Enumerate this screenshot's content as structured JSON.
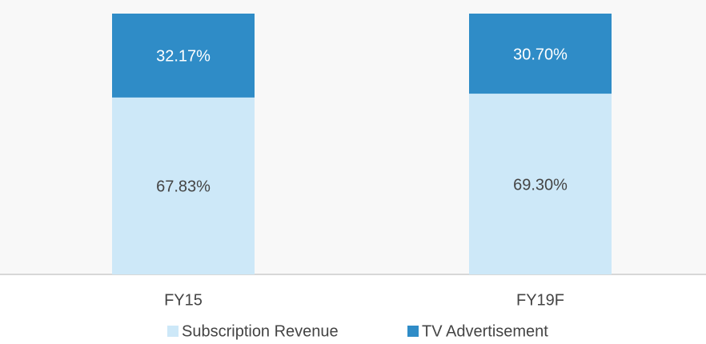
{
  "chart_data": {
    "type": "stacked_bar",
    "categories": [
      "FY15",
      "FY19F"
    ],
    "series": [
      {
        "name": "Subscription Revenue",
        "color": "#cde8f8",
        "values": [
          67.83,
          69.3
        ],
        "value_labels": [
          "67.83%",
          "69.30%"
        ],
        "label_color": "#444444"
      },
      {
        "name": "TV Advertisement",
        "color": "#2f8cc7",
        "values": [
          32.17,
          30.7
        ],
        "value_labels": [
          "32.17%",
          "30.70%"
        ],
        "label_color": "#ffffff"
      }
    ],
    "legend": "bottom"
  }
}
